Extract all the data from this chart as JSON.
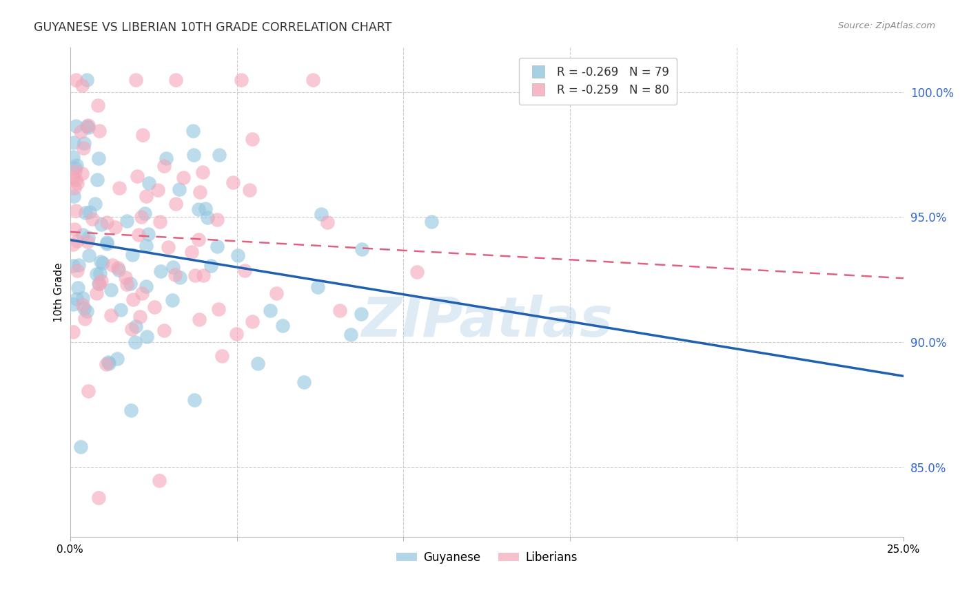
{
  "title": "GUYANESE VS LIBERIAN 10TH GRADE CORRELATION CHART",
  "source": "Source: ZipAtlas.com",
  "ylabel": "10th Grade",
  "ytick_labels": [
    "85.0%",
    "90.0%",
    "95.0%",
    "100.0%"
  ],
  "ytick_values": [
    0.85,
    0.9,
    0.95,
    1.0
  ],
  "xlim": [
    0.0,
    0.25
  ],
  "ylim": [
    0.822,
    1.018
  ],
  "legend_label_blue": "R = -0.269   N = 79",
  "legend_label_pink": "R = -0.259   N = 80",
  "guyanese_color": "#92c5de",
  "liberian_color": "#f4a6b8",
  "trend_blue_color": "#2060b0",
  "trend_pink_color": "#e06080",
  "watermark": "ZIPatlas"
}
